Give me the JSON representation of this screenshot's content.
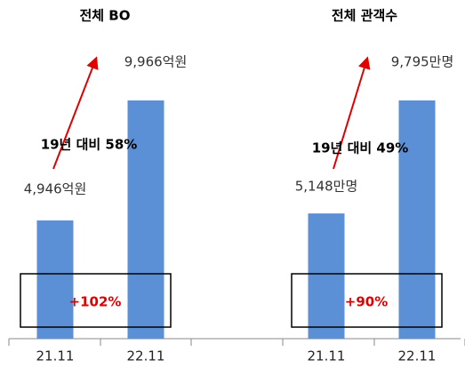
{
  "chart_data": [
    {
      "type": "bar",
      "title": "전체 BO",
      "categories": [
        "21.11",
        "22.11"
      ],
      "values": [
        4946,
        9966
      ],
      "value_labels": [
        "4,946억원",
        "9,966억원"
      ],
      "color": "#5b8fd6",
      "annotations": [
        "19년 대비 58%",
        "+102%"
      ]
    },
    {
      "type": "bar",
      "title": "전체 관객수",
      "categories": [
        "21.11",
        "22.11"
      ],
      "values": [
        5148,
        9795
      ],
      "value_labels": [
        "5,148만명",
        "9,795만명"
      ],
      "color": "#5b8fd6",
      "annotations": [
        "19년 대비 49%",
        "+90%"
      ]
    }
  ]
}
